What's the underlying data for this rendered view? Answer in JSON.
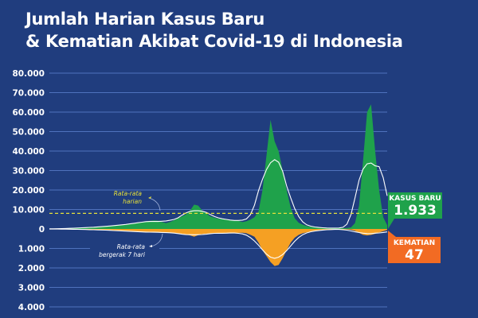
{
  "title_lines": [
    "Jumlah Harian Kasus Baru",
    "& Kematian Akibat Covid-19 di Indonesia"
  ],
  "colors": {
    "background": "#203d7e",
    "cases": "#1fa24b",
    "deaths": "#f5a023",
    "average_line": "#e6e03a",
    "moving_average": "#ffffff",
    "grid": "#4f72bd",
    "cases_badge": "#1fa24b",
    "deaths_badge": "#f26b23"
  },
  "chart_data": {
    "type": "area",
    "title": "Jumlah Harian Kasus Baru & Kematian Akibat Covid-19 di Indonesia",
    "y_upper_ticks": [
      "80.000",
      "70.000",
      "60.000",
      "50.000",
      "40.000",
      "30.000",
      "20.000",
      "10.000",
      "0"
    ],
    "y_lower_ticks": [
      "1.000",
      "2.000",
      "3.000",
      "4.000"
    ],
    "ylim_cases": [
      0,
      80000
    ],
    "ylim_deaths": [
      0,
      4000
    ],
    "grid": true,
    "series": [
      {
        "name": "Kasus Baru",
        "direction": "up",
        "values": [
          0,
          50,
          100,
          150,
          200,
          300,
          400,
          500,
          600,
          700,
          800,
          900,
          1000,
          1100,
          1300,
          1500,
          1700,
          1900,
          2100,
          2300,
          2500,
          2800,
          3100,
          3500,
          3900,
          4200,
          4400,
          4300,
          3600,
          3000,
          3600,
          4500,
          5500,
          6500,
          7500,
          9500,
          12500,
          12000,
          9500,
          8000,
          6500,
          5800,
          5300,
          5000,
          4800,
          4700,
          4500,
          4200,
          3500,
          4000,
          4800,
          6000,
          9000,
          20000,
          38000,
          56000,
          45000,
          40000,
          30000,
          20000,
          11000,
          5500,
          3200,
          2200,
          1500,
          1100,
          800,
          600,
          500,
          450,
          400,
          400,
          400,
          420,
          500,
          800,
          3000,
          12000,
          35000,
          60000,
          64000,
          40000,
          20000,
          6000,
          1933
        ]
      },
      {
        "name": "Kematian",
        "direction": "down",
        "values": [
          0,
          2,
          4,
          6,
          8,
          10,
          15,
          20,
          25,
          30,
          35,
          40,
          45,
          50,
          60,
          70,
          80,
          90,
          100,
          110,
          120,
          130,
          140,
          150,
          160,
          170,
          180,
          170,
          160,
          170,
          190,
          210,
          230,
          250,
          280,
          330,
          400,
          320,
          260,
          240,
          230,
          220,
          220,
          210,
          200,
          230,
          220,
          200,
          190,
          220,
          300,
          400,
          700,
          1100,
          1400,
          1700,
          1900,
          1850,
          1500,
          1100,
          700,
          450,
          300,
          220,
          170,
          130,
          90,
          60,
          40,
          30,
          25,
          20,
          20,
          20,
          25,
          40,
          100,
          200,
          300,
          330,
          300,
          250,
          180,
          120,
          47
        ]
      }
    ],
    "reference_line": {
      "label": "Rata-rata harian",
      "value": 8000
    },
    "annotations": [
      {
        "text_lines": [
          "Rata-rata",
          "harian"
        ]
      },
      {
        "text_lines": [
          "Rata-rata",
          "bergerak 7 hari"
        ]
      }
    ]
  },
  "callouts": {
    "cases": {
      "label": "KASUS BARU",
      "value": "1.933"
    },
    "deaths": {
      "label": "KEMATIAN",
      "value": "47"
    }
  }
}
